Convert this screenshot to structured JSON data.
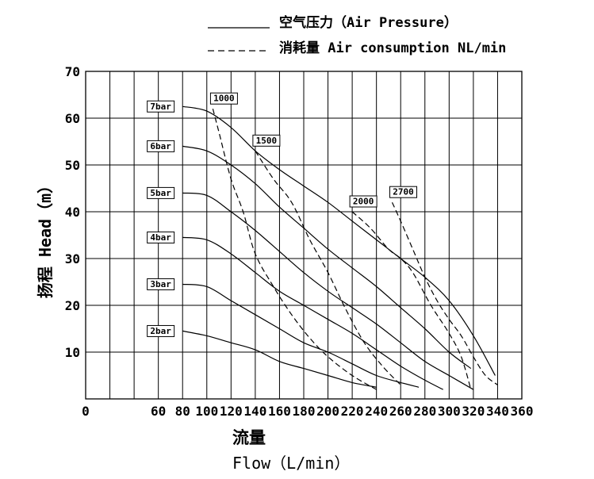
{
  "legend": {
    "pressure_label": "空气压力（Air Pressure）",
    "consumption_label": "消耗量 Air consumption NL/min"
  },
  "chart_data": {
    "type": "line",
    "xlabel_cn": "流量",
    "xlabel": "Flow（L/min）",
    "ylabel": "扬程 Head（m）",
    "xlim": [
      0,
      360
    ],
    "ylim": [
      0,
      70
    ],
    "x_ticks": [
      0,
      60,
      80,
      100,
      120,
      140,
      160,
      180,
      200,
      220,
      240,
      260,
      280,
      300,
      320,
      340,
      360
    ],
    "y_ticks": [
      10,
      20,
      30,
      40,
      50,
      60,
      70
    ],
    "grid": true,
    "series": [
      {
        "name": "7bar",
        "style": "solid",
        "points": [
          [
            80,
            62.5
          ],
          [
            100,
            61.5
          ],
          [
            120,
            58
          ],
          [
            140,
            53
          ],
          [
            160,
            49
          ],
          [
            180,
            45.5
          ],
          [
            200,
            42
          ],
          [
            220,
            38
          ],
          [
            240,
            34
          ],
          [
            260,
            30
          ],
          [
            280,
            26
          ],
          [
            300,
            21
          ],
          [
            320,
            13.5
          ],
          [
            338,
            5
          ]
        ]
      },
      {
        "name": "6bar",
        "style": "solid",
        "points": [
          [
            80,
            54
          ],
          [
            100,
            53
          ],
          [
            120,
            50
          ],
          [
            140,
            46
          ],
          [
            160,
            41
          ],
          [
            180,
            36.5
          ],
          [
            200,
            32
          ],
          [
            220,
            28
          ],
          [
            240,
            24
          ],
          [
            260,
            19.5
          ],
          [
            280,
            15
          ],
          [
            300,
            10
          ],
          [
            318,
            6.5
          ]
        ]
      },
      {
        "name": "5bar",
        "style": "solid",
        "points": [
          [
            80,
            44
          ],
          [
            100,
            43.5
          ],
          [
            120,
            40
          ],
          [
            140,
            36
          ],
          [
            160,
            31.5
          ],
          [
            180,
            27
          ],
          [
            200,
            23
          ],
          [
            220,
            19.5
          ],
          [
            240,
            16
          ],
          [
            260,
            12
          ],
          [
            280,
            8
          ],
          [
            300,
            5
          ],
          [
            320,
            2
          ]
        ]
      },
      {
        "name": "4bar",
        "style": "solid",
        "points": [
          [
            80,
            34.5
          ],
          [
            100,
            34
          ],
          [
            120,
            31
          ],
          [
            140,
            27
          ],
          [
            160,
            23
          ],
          [
            180,
            20
          ],
          [
            200,
            17
          ],
          [
            220,
            14
          ],
          [
            240,
            10.5
          ],
          [
            260,
            7
          ],
          [
            280,
            4
          ],
          [
            295,
            2
          ]
        ]
      },
      {
        "name": "3bar",
        "style": "solid",
        "points": [
          [
            80,
            24.5
          ],
          [
            100,
            24
          ],
          [
            120,
            21
          ],
          [
            140,
            18
          ],
          [
            160,
            15
          ],
          [
            180,
            12
          ],
          [
            200,
            10
          ],
          [
            220,
            7.5
          ],
          [
            240,
            5
          ],
          [
            260,
            3.5
          ],
          [
            275,
            2.5
          ]
        ]
      },
      {
        "name": "2bar",
        "style": "solid",
        "points": [
          [
            80,
            14.5
          ],
          [
            100,
            13.5
          ],
          [
            120,
            12
          ],
          [
            140,
            10.5
          ],
          [
            160,
            8
          ],
          [
            180,
            6.5
          ],
          [
            200,
            5
          ],
          [
            220,
            3.5
          ],
          [
            240,
            2.5
          ]
        ]
      },
      {
        "name": "1000",
        "style": "dashed",
        "points": [
          [
            105,
            62
          ],
          [
            110,
            57
          ],
          [
            120,
            47
          ],
          [
            130,
            40
          ],
          [
            140,
            31
          ],
          [
            155,
            24
          ],
          [
            170,
            18
          ],
          [
            185,
            13
          ],
          [
            200,
            9
          ],
          [
            220,
            5
          ],
          [
            240,
            2
          ]
        ]
      },
      {
        "name": "1500",
        "style": "dashed",
        "points": [
          [
            140,
            53
          ],
          [
            155,
            47
          ],
          [
            170,
            42
          ],
          [
            185,
            34
          ],
          [
            200,
            27
          ],
          [
            215,
            19
          ],
          [
            230,
            12
          ],
          [
            245,
            7
          ],
          [
            260,
            3
          ]
        ]
      },
      {
        "name": "2000",
        "style": "dashed",
        "points": [
          [
            220,
            40
          ],
          [
            235,
            36.5
          ],
          [
            250,
            32
          ],
          [
            260,
            30
          ],
          [
            270,
            27
          ],
          [
            285,
            20
          ],
          [
            300,
            14
          ],
          [
            310,
            9
          ],
          [
            318,
            2
          ]
        ]
      },
      {
        "name": "2700",
        "style": "dashed",
        "points": [
          [
            253,
            42
          ],
          [
            260,
            38
          ],
          [
            270,
            32
          ],
          [
            280,
            26
          ],
          [
            290,
            21
          ],
          [
            300,
            17
          ],
          [
            310,
            13.5
          ],
          [
            320,
            9
          ],
          [
            330,
            5
          ],
          [
            340,
            3
          ]
        ]
      }
    ]
  }
}
